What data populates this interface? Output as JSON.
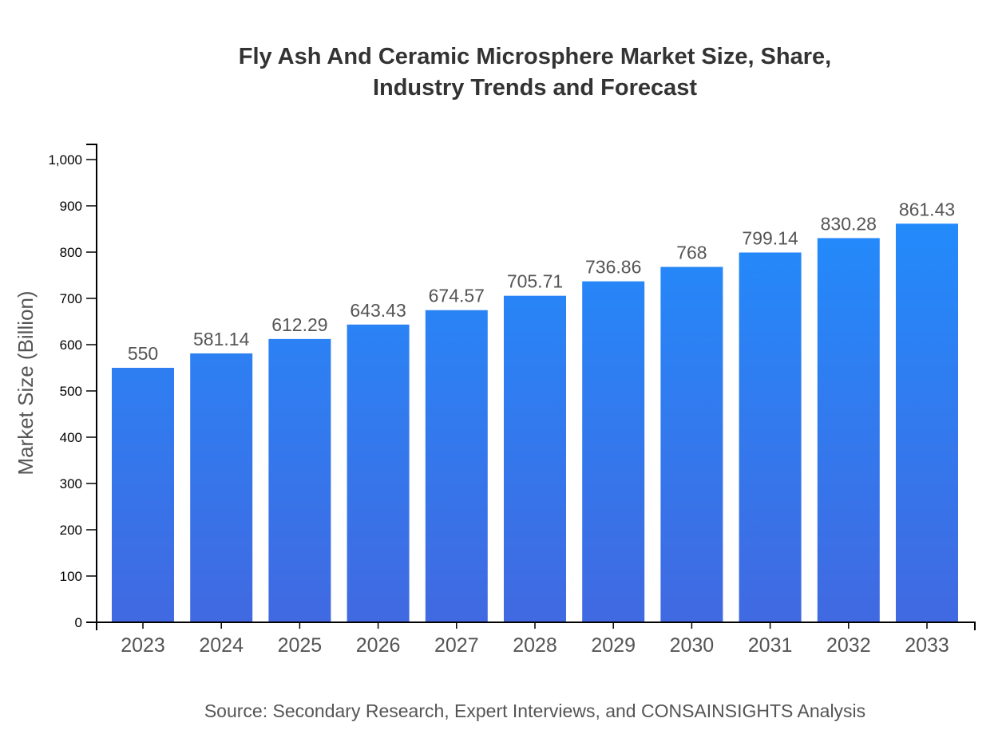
{
  "chart_data": {
    "type": "bar",
    "title_line1": "Fly Ash And Ceramic Microsphere Market Size, Share,",
    "title_line2": "Industry Trends and Forecast",
    "xlabel": "",
    "ylabel": "Market Size (Billion)",
    "categories": [
      "2023",
      "2024",
      "2025",
      "2026",
      "2027",
      "2028",
      "2029",
      "2030",
      "2031",
      "2032",
      "2033"
    ],
    "values": [
      550,
      581.14,
      612.29,
      643.43,
      674.57,
      705.71,
      736.86,
      768,
      799.14,
      830.28,
      861.43
    ],
    "data_labels": [
      "550",
      "581.14",
      "612.29",
      "643.43",
      "674.57",
      "705.71",
      "736.86",
      "768",
      "799.14",
      "830.28",
      "861.43"
    ],
    "ylim": [
      0,
      1000
    ],
    "yticks": [
      0,
      100,
      200,
      300,
      400,
      500,
      600,
      700,
      800,
      900,
      1000
    ],
    "ytick_labels": [
      "0",
      "100",
      "200",
      "300",
      "400",
      "500",
      "600",
      "700",
      "800",
      "900",
      "1,000"
    ],
    "grid": false,
    "colors": {
      "bar_top": "#1e90ff",
      "bar_bottom": "#4169e1"
    },
    "source": "Source: Secondary Research, Expert Interviews, and CONSAINSIGHTS Analysis"
  }
}
